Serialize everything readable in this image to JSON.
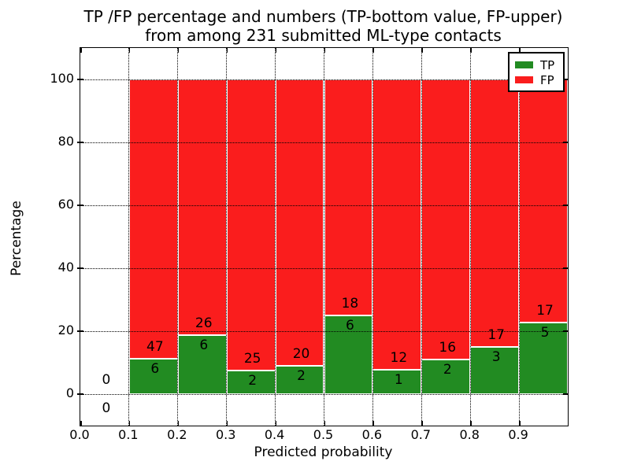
{
  "figure": {
    "background": "#ffffff",
    "title_line1": "TP /FP percentage and numbers (TP-bottom value, FP-upper)",
    "title_line2": "from among 231 submitted ML-type contacts"
  },
  "chart_data": {
    "type": "bar",
    "stacked": true,
    "normalized_to_percent": true,
    "title": "TP /FP percentage and numbers (TP-bottom value, FP-upper) from among 231 submitted ML-type contacts",
    "xlabel": "Predicted probability",
    "ylabel": "Percentage",
    "xlim": [
      0.0,
      1.0
    ],
    "ylim": [
      -10,
      110
    ],
    "xtick_labels": [
      "0.0",
      "0.1",
      "0.2",
      "0.3",
      "0.4",
      "0.5",
      "0.6",
      "0.7",
      "0.8",
      "0.9"
    ],
    "xtick_values": [
      0.0,
      0.1,
      0.2,
      0.3,
      0.4,
      0.5,
      0.6,
      0.7,
      0.8,
      0.9
    ],
    "ytick_values": [
      0,
      20,
      40,
      60,
      80,
      100
    ],
    "grid": "dotted, both axes, drawn above bars",
    "legend_position": "upper right",
    "total_contacts": 231,
    "colors": {
      "tp": "#228b22",
      "fp": "#fa1d1d",
      "bar_edge": "#ffffff",
      "axes": "#000000"
    },
    "series": [
      {
        "name": "TP",
        "color": "#228b22"
      },
      {
        "name": "FP",
        "color": "#fa1d1d"
      }
    ],
    "bins": [
      {
        "range": [
          0.0,
          0.1
        ],
        "tp": 0,
        "fp": 0
      },
      {
        "range": [
          0.1,
          0.2
        ],
        "tp": 6,
        "fp": 47
      },
      {
        "range": [
          0.2,
          0.3
        ],
        "tp": 6,
        "fp": 26
      },
      {
        "range": [
          0.3,
          0.4
        ],
        "tp": 2,
        "fp": 25
      },
      {
        "range": [
          0.4,
          0.5
        ],
        "tp": 2,
        "fp": 20
      },
      {
        "range": [
          0.5,
          0.6
        ],
        "tp": 6,
        "fp": 18
      },
      {
        "range": [
          0.6,
          0.7
        ],
        "tp": 1,
        "fp": 12
      },
      {
        "range": [
          0.7,
          0.8
        ],
        "tp": 2,
        "fp": 16
      },
      {
        "range": [
          0.8,
          0.9
        ],
        "tp": 3,
        "fp": 17
      },
      {
        "range": [
          0.9,
          1.0
        ],
        "tp": 5,
        "fp": 17
      }
    ]
  }
}
